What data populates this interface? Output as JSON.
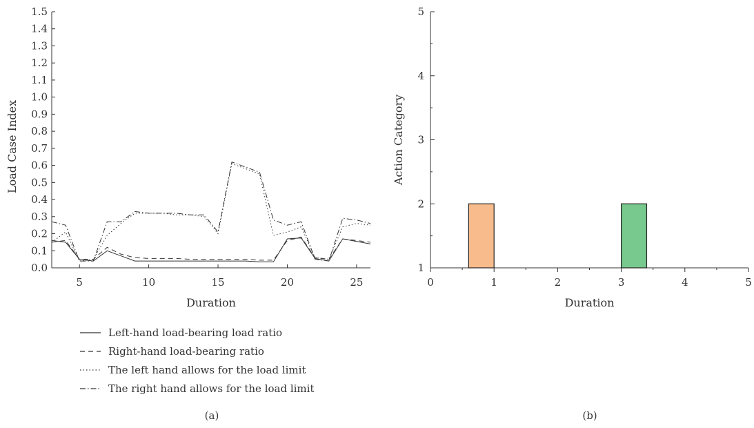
{
  "chart_data": [
    {
      "type": "line",
      "panel_label": "(a)",
      "xlabel": "Duration",
      "ylabel": "Load Case Index",
      "xlim": [
        3,
        26
      ],
      "ylim": [
        0,
        1.5
      ],
      "xticks": [
        "5",
        "10",
        "15",
        "20",
        "25"
      ],
      "yticks": [
        "0.0",
        "0.1",
        "0.2",
        "0.3",
        "0.4",
        "0.5",
        "0.6",
        "0.7",
        "0.8",
        "0.9",
        "1.0",
        "1.1",
        "1.2",
        "1.3",
        "1.4",
        "1.5"
      ],
      "grid": false,
      "legend_position": "bottom",
      "x": [
        3,
        4,
        5,
        6,
        7,
        8,
        9,
        10,
        11,
        12,
        13,
        14,
        15,
        16,
        17,
        18,
        19,
        20,
        21,
        22,
        23,
        24,
        25,
        26
      ],
      "series": [
        {
          "name": "Left-hand load-bearing load ratio",
          "dash": "solid",
          "values": [
            0.16,
            0.15,
            0.05,
            0.04,
            0.1,
            0.07,
            0.04,
            0.04,
            0.04,
            0.04,
            0.04,
            0.04,
            0.04,
            0.04,
            0.04,
            0.035,
            0.035,
            0.17,
            0.175,
            0.055,
            0.04,
            0.17,
            0.155,
            0.14
          ]
        },
        {
          "name": "Right-hand load-bearing ratio",
          "dash": "dashed",
          "values": [
            0.15,
            0.16,
            0.05,
            0.05,
            0.12,
            0.08,
            0.06,
            0.055,
            0.055,
            0.055,
            0.05,
            0.05,
            0.05,
            0.05,
            0.05,
            0.045,
            0.045,
            0.16,
            0.18,
            0.06,
            0.05,
            0.17,
            0.16,
            0.15
          ]
        },
        {
          "name": "The left hand allows for the load limit",
          "dash": "dotted",
          "values": [
            0.15,
            0.21,
            0.04,
            0.05,
            0.19,
            0.26,
            0.32,
            0.32,
            0.32,
            0.31,
            0.31,
            0.3,
            0.2,
            0.61,
            0.58,
            0.55,
            0.19,
            0.21,
            0.24,
            0.06,
            0.05,
            0.24,
            0.26,
            0.25
          ]
        },
        {
          "name": "The right hand allows for the load limit",
          "dash": "dashdot",
          "values": [
            0.27,
            0.25,
            0.04,
            0.04,
            0.27,
            0.27,
            0.33,
            0.32,
            0.32,
            0.32,
            0.31,
            0.31,
            0.21,
            0.62,
            0.59,
            0.56,
            0.28,
            0.25,
            0.27,
            0.05,
            0.04,
            0.29,
            0.28,
            0.26
          ]
        }
      ]
    },
    {
      "type": "bar",
      "panel_label": "(b)",
      "xlabel": "Duration",
      "ylabel": "Action Category",
      "xlim": [
        0,
        5
      ],
      "ylim": [
        1,
        5
      ],
      "xticks": [
        "0",
        "1",
        "2",
        "3",
        "4",
        "5"
      ],
      "yticks": [
        "1",
        "2",
        "3",
        "4",
        "5"
      ],
      "grid": false,
      "bars": [
        {
          "x_start": 0.6,
          "x_end": 1.0,
          "value": 2,
          "color": "#f8bb8c"
        },
        {
          "x_start": 3.0,
          "x_end": 3.4,
          "value": 2,
          "color": "#78c98e"
        }
      ]
    }
  ]
}
